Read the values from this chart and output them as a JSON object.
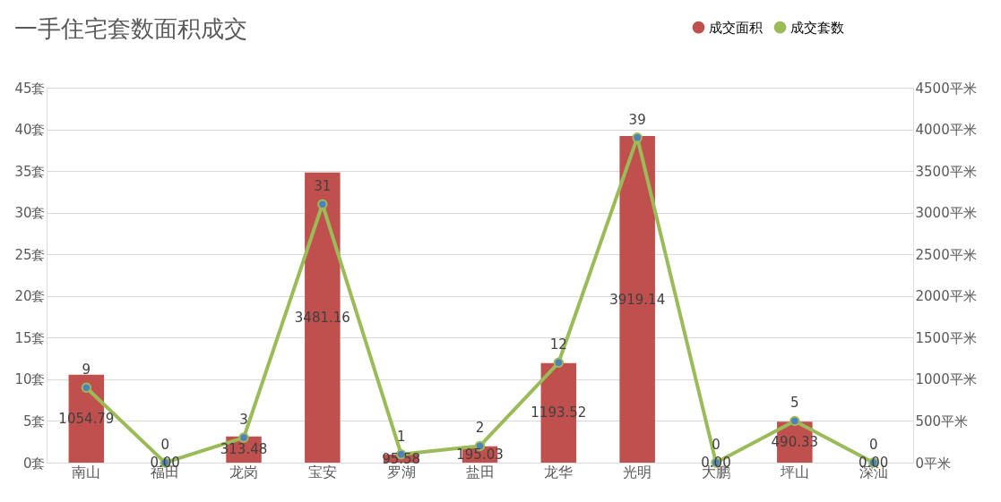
{
  "chart_data": {
    "type": "bar",
    "title": "一手住宅套数面积成交",
    "categories": [
      "南山",
      "福田",
      "龙岗",
      "宝安",
      "罗湖",
      "盐田",
      "龙华",
      "光明",
      "大鹏",
      "坪山",
      "深汕"
    ],
    "series": [
      {
        "name": "成交面积",
        "axis": "y2",
        "color": "#c0504d",
        "values": [
          1054.79,
          0.0,
          313.48,
          3481.16,
          95.58,
          195.03,
          1193.52,
          3919.14,
          0.0,
          490.33,
          0.0
        ],
        "value_labels": [
          "1054.79",
          "0.00",
          "313.48",
          "3481.16",
          "95.58",
          "195.03",
          "1193.52",
          "3919.14",
          "0.00",
          "490.33",
          "0.00"
        ]
      },
      {
        "name": "成交套数",
        "type": "line",
        "color": "#9bbb59",
        "values": [
          9,
          0,
          3,
          31,
          1,
          2,
          12,
          39,
          0,
          5,
          0
        ],
        "value_labels": [
          "9",
          "0",
          "3",
          "31",
          "1",
          "2",
          "12",
          "39",
          "0",
          "5",
          "0"
        ]
      }
    ],
    "ylim": [
      0,
      45
    ],
    "yticks": [
      {
        "value": 0,
        "label": "0套"
      },
      {
        "value": 5,
        "label": "5套"
      },
      {
        "value": 10,
        "label": "10套"
      },
      {
        "value": 15,
        "label": "15套"
      },
      {
        "value": 20,
        "label": "20套"
      },
      {
        "value": 25,
        "label": "25套"
      },
      {
        "value": 30,
        "label": "30套"
      },
      {
        "value": 35,
        "label": "35套"
      },
      {
        "value": 40,
        "label": "40套"
      },
      {
        "value": 45,
        "label": "45套"
      }
    ],
    "y2lim": [
      0,
      4500
    ],
    "y2ticks": [
      {
        "value": 0,
        "label": "0平米"
      },
      {
        "value": 500,
        "label": "500平米"
      },
      {
        "value": 1000,
        "label": "1000平米"
      },
      {
        "value": 1500,
        "label": "1500平米"
      },
      {
        "value": 2000,
        "label": "2000平米"
      },
      {
        "value": 2500,
        "label": "2500平米"
      },
      {
        "value": 3000,
        "label": "3000平米"
      },
      {
        "value": 3500,
        "label": "3500平米"
      },
      {
        "value": 4000,
        "label": "4000平米"
      },
      {
        "value": 4500,
        "label": "4500平米"
      }
    ],
    "grid": "y",
    "legend": "top right",
    "marker": "circle",
    "line_style": "solid"
  }
}
